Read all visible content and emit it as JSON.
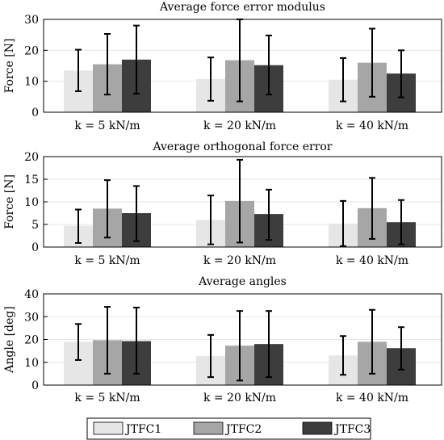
{
  "chart_data": [
    {
      "type": "bar",
      "title": "Average force error modulus",
      "ylabel": "Force [N]",
      "ylim": [
        0,
        30
      ],
      "yticks": [
        0,
        10,
        20,
        30
      ],
      "grid": true,
      "categories": [
        "k = 5 kN/m",
        "k = 20 kN/m",
        "k = 40 kN/m"
      ],
      "series": [
        {
          "name": "JTFC1",
          "values": [
            13.5,
            10.7,
            10.5
          ],
          "err_low": [
            6.8,
            3.7,
            3.5
          ],
          "err_high": [
            20.2,
            17.7,
            17.5
          ]
        },
        {
          "name": "JTFC2",
          "values": [
            15.5,
            16.8,
            16.0
          ],
          "err_low": [
            5.7,
            3.5,
            5.0
          ],
          "err_high": [
            25.3,
            30.0,
            27.0
          ]
        },
        {
          "name": "JTFC3",
          "values": [
            17.0,
            15.2,
            12.5
          ],
          "err_low": [
            6.0,
            5.7,
            4.8
          ],
          "err_high": [
            28.0,
            24.8,
            20.0
          ]
        }
      ]
    },
    {
      "type": "bar",
      "title": "Average orthogonal force error",
      "ylabel": "Force [N]",
      "ylim": [
        0,
        20
      ],
      "yticks": [
        0,
        5,
        10,
        15,
        20
      ],
      "grid": true,
      "categories": [
        "k = 5 kN/m",
        "k = 20 kN/m",
        "k = 40 kN/m"
      ],
      "series": [
        {
          "name": "JTFC1",
          "values": [
            4.7,
            6.0,
            5.2
          ],
          "err_low": [
            0.9,
            0.6,
            0.2
          ],
          "err_high": [
            8.3,
            11.4,
            10.2
          ]
        },
        {
          "name": "JTFC2",
          "values": [
            8.5,
            10.2,
            8.6
          ],
          "err_low": [
            2.1,
            1.0,
            1.8
          ],
          "err_high": [
            14.8,
            19.3,
            15.3
          ]
        },
        {
          "name": "JTFC3",
          "values": [
            7.5,
            7.3,
            5.5
          ],
          "err_low": [
            1.3,
            1.6,
            0.6
          ],
          "err_high": [
            13.5,
            12.7,
            10.4
          ]
        }
      ]
    },
    {
      "type": "bar",
      "title": "Average angles",
      "ylabel": "Angle [deg]",
      "ylim": [
        0,
        40
      ],
      "yticks": [
        0,
        10,
        20,
        30,
        40
      ],
      "grid": true,
      "categories": [
        "k = 5 kN/m",
        "k = 20 kN/m",
        "k = 40 kN/m"
      ],
      "series": [
        {
          "name": "JTFC1",
          "values": [
            19.0,
            12.8,
            13.0
          ],
          "err_low": [
            11.0,
            3.5,
            4.5
          ],
          "err_high": [
            26.8,
            22.0,
            21.5
          ]
        },
        {
          "name": "JTFC2",
          "values": [
            19.7,
            17.3,
            19.0
          ],
          "err_low": [
            5.0,
            2.0,
            5.0
          ],
          "err_high": [
            34.3,
            32.5,
            33.0
          ]
        },
        {
          "name": "JTFC3",
          "values": [
            19.3,
            18.0,
            16.2
          ],
          "err_low": [
            5.0,
            3.5,
            6.8
          ],
          "err_high": [
            34.0,
            32.5,
            25.4
          ]
        }
      ]
    }
  ],
  "legend": {
    "items": [
      {
        "label": "JTFC1"
      },
      {
        "label": "JTFC2"
      },
      {
        "label": "JTFC3"
      }
    ],
    "placement": "bottom"
  },
  "colors": {
    "JTFC1": "#e6e6e6",
    "JTFC2": "#a6a6a6",
    "JTFC3": "#3d3d3d",
    "grid": "#e6e6e6",
    "axis": "#000000"
  }
}
